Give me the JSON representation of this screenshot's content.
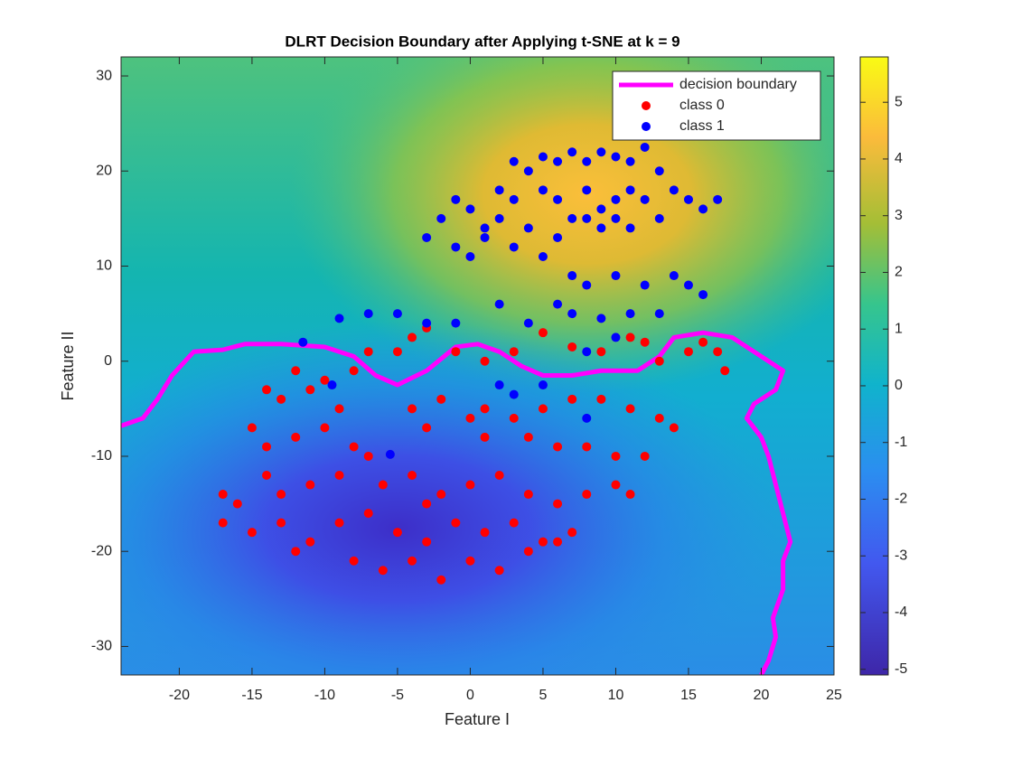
{
  "chart_data": {
    "type": "scatter",
    "title": "DLRT Decision Boundary after Applying t-SNE at k = 9",
    "xlabel": "Feature I",
    "ylabel": "Feature II",
    "xlim": [
      -24,
      25
    ],
    "ylim": [
      -33,
      32
    ],
    "xticks": [
      -20,
      -15,
      -10,
      -5,
      0,
      5,
      10,
      15,
      20,
      25
    ],
    "yticks": [
      -30,
      -20,
      -10,
      0,
      10,
      20,
      30
    ],
    "legend": "upper right",
    "colorbar": {
      "lim": [
        -5.1,
        5.8
      ],
      "ticks": [
        -5,
        -4,
        -3,
        -2,
        -1,
        0,
        1,
        2,
        3,
        4,
        5
      ]
    },
    "series": [
      {
        "name": "decision boundary",
        "type": "line",
        "color": "#ff00ff",
        "x": [
          -24,
          -22.5,
          -21.5,
          -20.5,
          -19,
          -17,
          -15.5,
          -13,
          -10,
          -8,
          -6.5,
          -5,
          -3,
          -1,
          0.5,
          2,
          3.5,
          5,
          7,
          9,
          11.5,
          13,
          14,
          16,
          18,
          19.5,
          21.5,
          21,
          19.5,
          19,
          20,
          20.5,
          21,
          21.5,
          22,
          21.5,
          21.5,
          20.8,
          21,
          20.5,
          20
        ],
        "y": [
          -6.8,
          -6,
          -4,
          -1.5,
          1,
          1.2,
          1.8,
          1.8,
          1.5,
          0.5,
          -1.5,
          -2.5,
          -1,
          1.5,
          1.8,
          1,
          -0.5,
          -1.5,
          -1.5,
          -1,
          -1,
          0.5,
          2.5,
          3,
          2.5,
          1,
          -1,
          -3,
          -4.5,
          -6,
          -8,
          -10,
          -13,
          -16,
          -19,
          -21,
          -24,
          -27,
          -29,
          -31.5,
          -33
        ]
      },
      {
        "name": "class 0",
        "type": "points",
        "color": "#ff0000",
        "x": [
          -14,
          -12,
          -10,
          -8,
          -7,
          -5,
          -4,
          -3,
          -1,
          1,
          3,
          5,
          7,
          9,
          11,
          12,
          13,
          15,
          16,
          17,
          17.5,
          -13,
          -11,
          -9,
          -4,
          -2,
          0,
          1,
          3,
          5,
          7,
          9,
          11,
          13,
          14,
          -15,
          -14,
          -12,
          -10,
          -8,
          -7,
          -3,
          1,
          4,
          6,
          8,
          10,
          12,
          -17,
          -16,
          -14,
          -13,
          -11,
          -9,
          -6,
          -4,
          -2,
          0,
          2,
          4,
          6,
          8,
          10,
          11,
          -17,
          -15,
          -13,
          -11,
          -9,
          -7,
          -5,
          -3,
          -1,
          1,
          3,
          5,
          7,
          -12,
          -8,
          -6,
          -4,
          -2,
          0,
          2,
          4,
          6,
          -3
        ],
        "y": [
          -3,
          -1,
          -2,
          -1,
          1,
          1,
          2.5,
          3.5,
          1,
          0,
          1,
          3,
          1.5,
          1,
          2.5,
          2,
          0,
          1,
          2,
          1,
          -1,
          -4,
          -3,
          -5,
          -5,
          -4,
          -6,
          -5,
          -6,
          -5,
          -4,
          -4,
          -5,
          -6,
          -7,
          -7,
          -9,
          -8,
          -7,
          -9,
          -10,
          -7,
          -8,
          -8,
          -9,
          -9,
          -10,
          -10,
          -14,
          -15,
          -12,
          -14,
          -13,
          -12,
          -13,
          -12,
          -14,
          -13,
          -12,
          -14,
          -15,
          -14,
          -13,
          -14,
          -17,
          -18,
          -17,
          -19,
          -17,
          -16,
          -18,
          -19,
          -17,
          -18,
          -17,
          -19,
          -18,
          -20,
          -21,
          -22,
          -21,
          -23,
          -21,
          -22,
          -20,
          -19,
          -15
        ]
      },
      {
        "name": "class 1",
        "type": "points",
        "color": "#0000ff",
        "x": [
          3,
          4,
          5,
          6,
          7,
          8,
          9,
          10,
          11,
          12,
          13,
          2,
          3,
          5,
          6,
          8,
          9,
          10,
          11,
          12,
          14,
          15,
          16,
          17,
          -1,
          0,
          1,
          2,
          4,
          6,
          7,
          8,
          9,
          10,
          11,
          13,
          -3,
          -2,
          -1,
          0,
          1,
          3,
          5,
          7,
          8,
          10,
          12,
          14,
          15,
          16,
          6,
          7,
          9,
          11,
          13,
          4,
          2,
          -1,
          -3,
          -5,
          -7,
          -9,
          -11.5,
          -9.5,
          2,
          3,
          5,
          8,
          10,
          8,
          -5.5
        ],
        "y": [
          21,
          20,
          21.5,
          21,
          22,
          21,
          22,
          21.5,
          21,
          22.5,
          20,
          18,
          17,
          18,
          17,
          18,
          16,
          17,
          18,
          17,
          18,
          17,
          16,
          17,
          17,
          16,
          14,
          15,
          14,
          13,
          15,
          15,
          14,
          15,
          14,
          15,
          13,
          15,
          12,
          11,
          13,
          12,
          11,
          9,
          8,
          9,
          8,
          9,
          8,
          7,
          6,
          5,
          4.5,
          5,
          5,
          4,
          6,
          4,
          4,
          5,
          5,
          4.5,
          2,
          -2.5,
          -2.5,
          -3.5,
          -2.5,
          1,
          2.5,
          -6,
          -9.8
        ]
      }
    ]
  }
}
